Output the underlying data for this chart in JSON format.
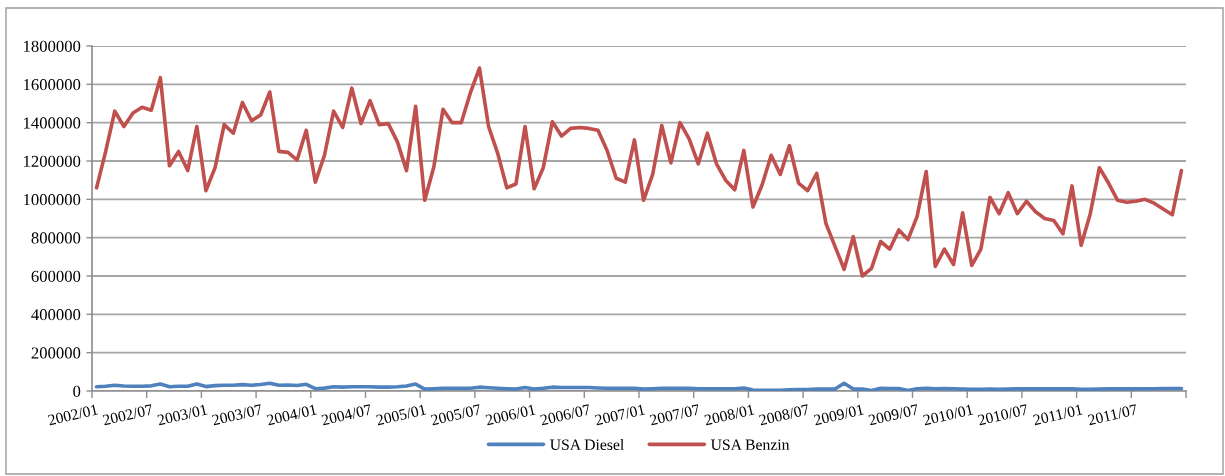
{
  "chart_data": {
    "type": "line",
    "categories": [
      "2002/01",
      null,
      null,
      null,
      null,
      null,
      "2002/07",
      null,
      null,
      null,
      null,
      null,
      "2003/01",
      null,
      null,
      null,
      null,
      null,
      "2003/07",
      null,
      null,
      null,
      null,
      null,
      "2004/01",
      null,
      null,
      null,
      null,
      null,
      "2004/07",
      null,
      null,
      null,
      null,
      null,
      "2005/01",
      null,
      null,
      null,
      null,
      null,
      "2005/07",
      null,
      null,
      null,
      null,
      null,
      "2006/01",
      null,
      null,
      null,
      null,
      null,
      "2006/07",
      null,
      null,
      null,
      null,
      null,
      "2007/01",
      null,
      null,
      null,
      null,
      null,
      "2007/07",
      null,
      null,
      null,
      null,
      null,
      "2008/01",
      null,
      null,
      null,
      null,
      null,
      "2008/07",
      null,
      null,
      null,
      null,
      null,
      "2009/01",
      null,
      null,
      null,
      null,
      null,
      "2009/07",
      null,
      null,
      null,
      null,
      null,
      "2010/01",
      null,
      null,
      null,
      null,
      null,
      "2010/07",
      null,
      null,
      null,
      null,
      null,
      "2011/01",
      null,
      null,
      null,
      null,
      null,
      "2011/07",
      null,
      null,
      null,
      null,
      null
    ],
    "series": [
      {
        "name": "USA Diesel",
        "color": "#4f81bd",
        "values": [
          22000,
          25000,
          30000,
          26000,
          25000,
          25000,
          27000,
          36000,
          22000,
          25000,
          25000,
          36000,
          23000,
          28000,
          30000,
          30000,
          33000,
          30000,
          34000,
          40000,
          30000,
          31000,
          29000,
          35000,
          12000,
          15000,
          22000,
          20000,
          22000,
          22000,
          22000,
          20000,
          20000,
          22000,
          26000,
          36000,
          10000,
          12000,
          14000,
          14000,
          14000,
          14000,
          20000,
          17000,
          14000,
          12000,
          10000,
          18000,
          10000,
          14000,
          20000,
          18000,
          18000,
          18000,
          18000,
          16000,
          14000,
          14000,
          14000,
          14000,
          10000,
          12000,
          14000,
          14000,
          14000,
          14000,
          12000,
          12000,
          12000,
          12000,
          12000,
          16000,
          5000,
          4000,
          4000,
          4000,
          6000,
          7000,
          8000,
          10000,
          10000,
          10000,
          40000,
          10000,
          10000,
          2000,
          14000,
          13000,
          13000,
          2000,
          12000,
          14000,
          12000,
          13000,
          12000,
          10000,
          9000,
          9000,
          10000,
          9000,
          10000,
          11000,
          11000,
          11000,
          11000,
          11000,
          11000,
          11000,
          9000,
          9000,
          10000,
          12000,
          11000,
          11000,
          11000,
          12000,
          12000,
          13000,
          13000,
          13000
        ]
      },
      {
        "name": "USA Benzin",
        "color": "#c0504d",
        "values": [
          1060000,
          1250000,
          1460000,
          1380000,
          1450000,
          1480000,
          1465000,
          1635000,
          1175000,
          1250000,
          1150000,
          1380000,
          1045000,
          1165000,
          1390000,
          1345000,
          1505000,
          1410000,
          1440000,
          1560000,
          1250000,
          1245000,
          1205000,
          1360000,
          1090000,
          1230000,
          1460000,
          1375000,
          1580000,
          1395000,
          1515000,
          1390000,
          1395000,
          1300000,
          1150000,
          1485000,
          995000,
          1170000,
          1470000,
          1400000,
          1400000,
          1555000,
          1685000,
          1380000,
          1240000,
          1060000,
          1080000,
          1380000,
          1055000,
          1165000,
          1405000,
          1330000,
          1370000,
          1375000,
          1370000,
          1360000,
          1255000,
          1110000,
          1090000,
          1310000,
          995000,
          1130000,
          1385000,
          1190000,
          1400000,
          1315000,
          1185000,
          1345000,
          1185000,
          1100000,
          1050000,
          1255000,
          960000,
          1075000,
          1230000,
          1130000,
          1280000,
          1085000,
          1045000,
          1135000,
          875000,
          755000,
          635000,
          805000,
          600000,
          640000,
          780000,
          740000,
          840000,
          790000,
          910000,
          1145000,
          650000,
          740000,
          660000,
          930000,
          655000,
          740000,
          1010000,
          925000,
          1035000,
          925000,
          990000,
          935000,
          900000,
          890000,
          820000,
          1070000,
          760000,
          925000,
          1165000,
          1085000,
          995000,
          985000,
          990000,
          1000000,
          980000,
          950000,
          920000,
          1150000
        ]
      }
    ],
    "ylim": [
      0,
      1800000
    ],
    "yticks": [
      0,
      200000,
      400000,
      600000,
      800000,
      1000000,
      1200000,
      1400000,
      1600000,
      1800000
    ],
    "grid": "y",
    "legend": "bottom",
    "line_style": "solid"
  }
}
